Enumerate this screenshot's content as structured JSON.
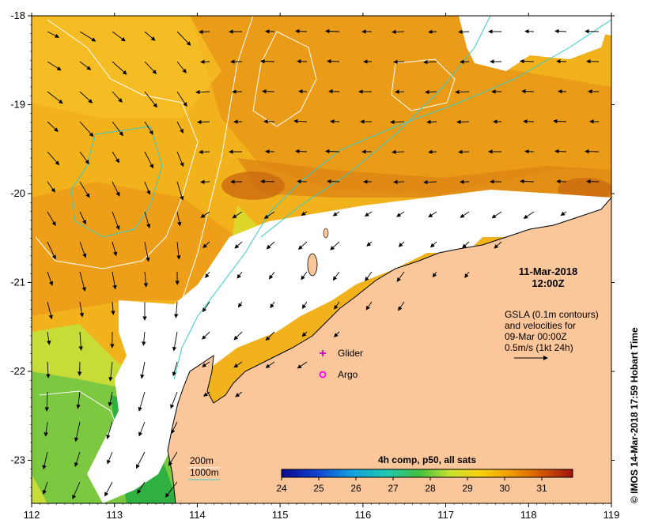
{
  "map": {
    "lon_ticks": [
      "112",
      "113",
      "114",
      "115",
      "116",
      "117",
      "118",
      "119"
    ],
    "lat_ticks": [
      "-18",
      "-19",
      "-20",
      "-21",
      "-22",
      "-23"
    ],
    "date": "11-Mar-2018",
    "time": "12:00Z",
    "gsla_lines": [
      "GSLA (0.1m contours)",
      "and velocities for",
      "09-Mar 00:00Z",
      "0.5m/s (1kt 24h)"
    ],
    "legend_glider": "Glider",
    "legend_argo": "Argo",
    "isobath_200": "200m",
    "isobath_1000": "1000m",
    "colorbar_title": "4h comp, p50, all sats",
    "colorbar_ticks": [
      "24",
      "25",
      "26",
      "27",
      "28",
      "29",
      "30",
      "31"
    ],
    "credit": "© IMOS 14-Mar-2018 17:59 Hobart Time",
    "colors": {
      "land": "#fbc79a",
      "isobath_200": "#ffffff",
      "isobath_1000": "#33cccc",
      "glider": "#cc00cc",
      "argo": "#ff00ff"
    }
  }
}
